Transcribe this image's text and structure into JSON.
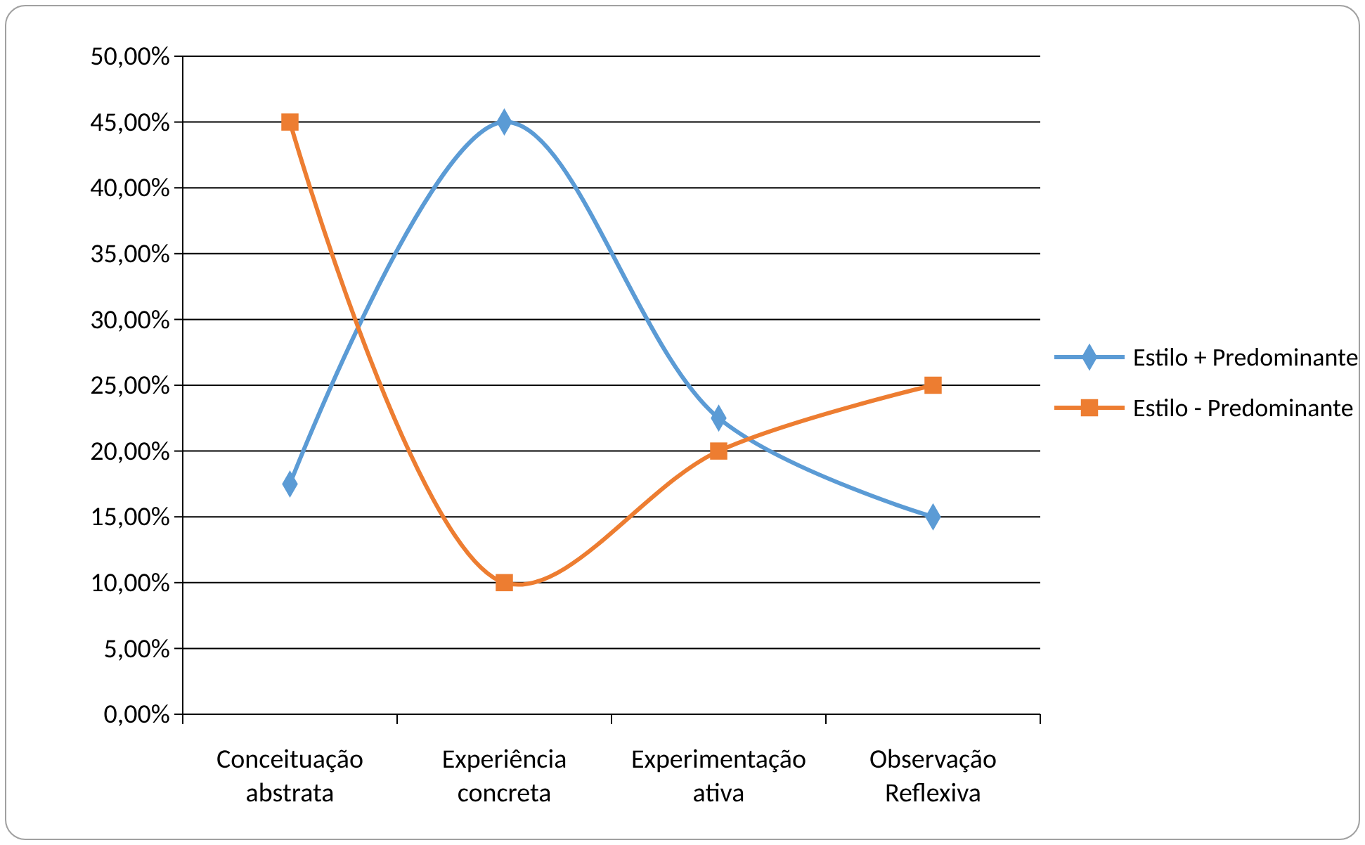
{
  "chart_data": {
    "type": "line",
    "categories": [
      "Conceituação abstrata",
      "Experiência concreta",
      "Experimentação ativa",
      "Observação Reflexiva"
    ],
    "series": [
      {
        "name": "Estilo + Predominante",
        "color": "#5b9bd5",
        "marker": "diamond",
        "values": [
          17.5,
          45,
          22.5,
          15
        ]
      },
      {
        "name": "Estilo  - Predominante",
        "color": "#ed7d31",
        "marker": "square",
        "values": [
          45,
          10,
          20,
          25
        ]
      }
    ],
    "ylim": [
      0,
      50
    ],
    "yticks": [
      {
        "value": 0,
        "label": "0,00%"
      },
      {
        "value": 5,
        "label": "5,00%"
      },
      {
        "value": 10,
        "label": "10,00%"
      },
      {
        "value": 15,
        "label": "15,00%"
      },
      {
        "value": 20,
        "label": "20,00%"
      },
      {
        "value": 25,
        "label": "25,00%"
      },
      {
        "value": 30,
        "label": "30,00%"
      },
      {
        "value": 35,
        "label": "35,00%"
      },
      {
        "value": 40,
        "label": "40,00%"
      },
      {
        "value": 45,
        "label": "45,00%"
      },
      {
        "value": 50,
        "label": "50,00%"
      }
    ],
    "grid": "y",
    "legend": "right",
    "line_style": "solid"
  }
}
